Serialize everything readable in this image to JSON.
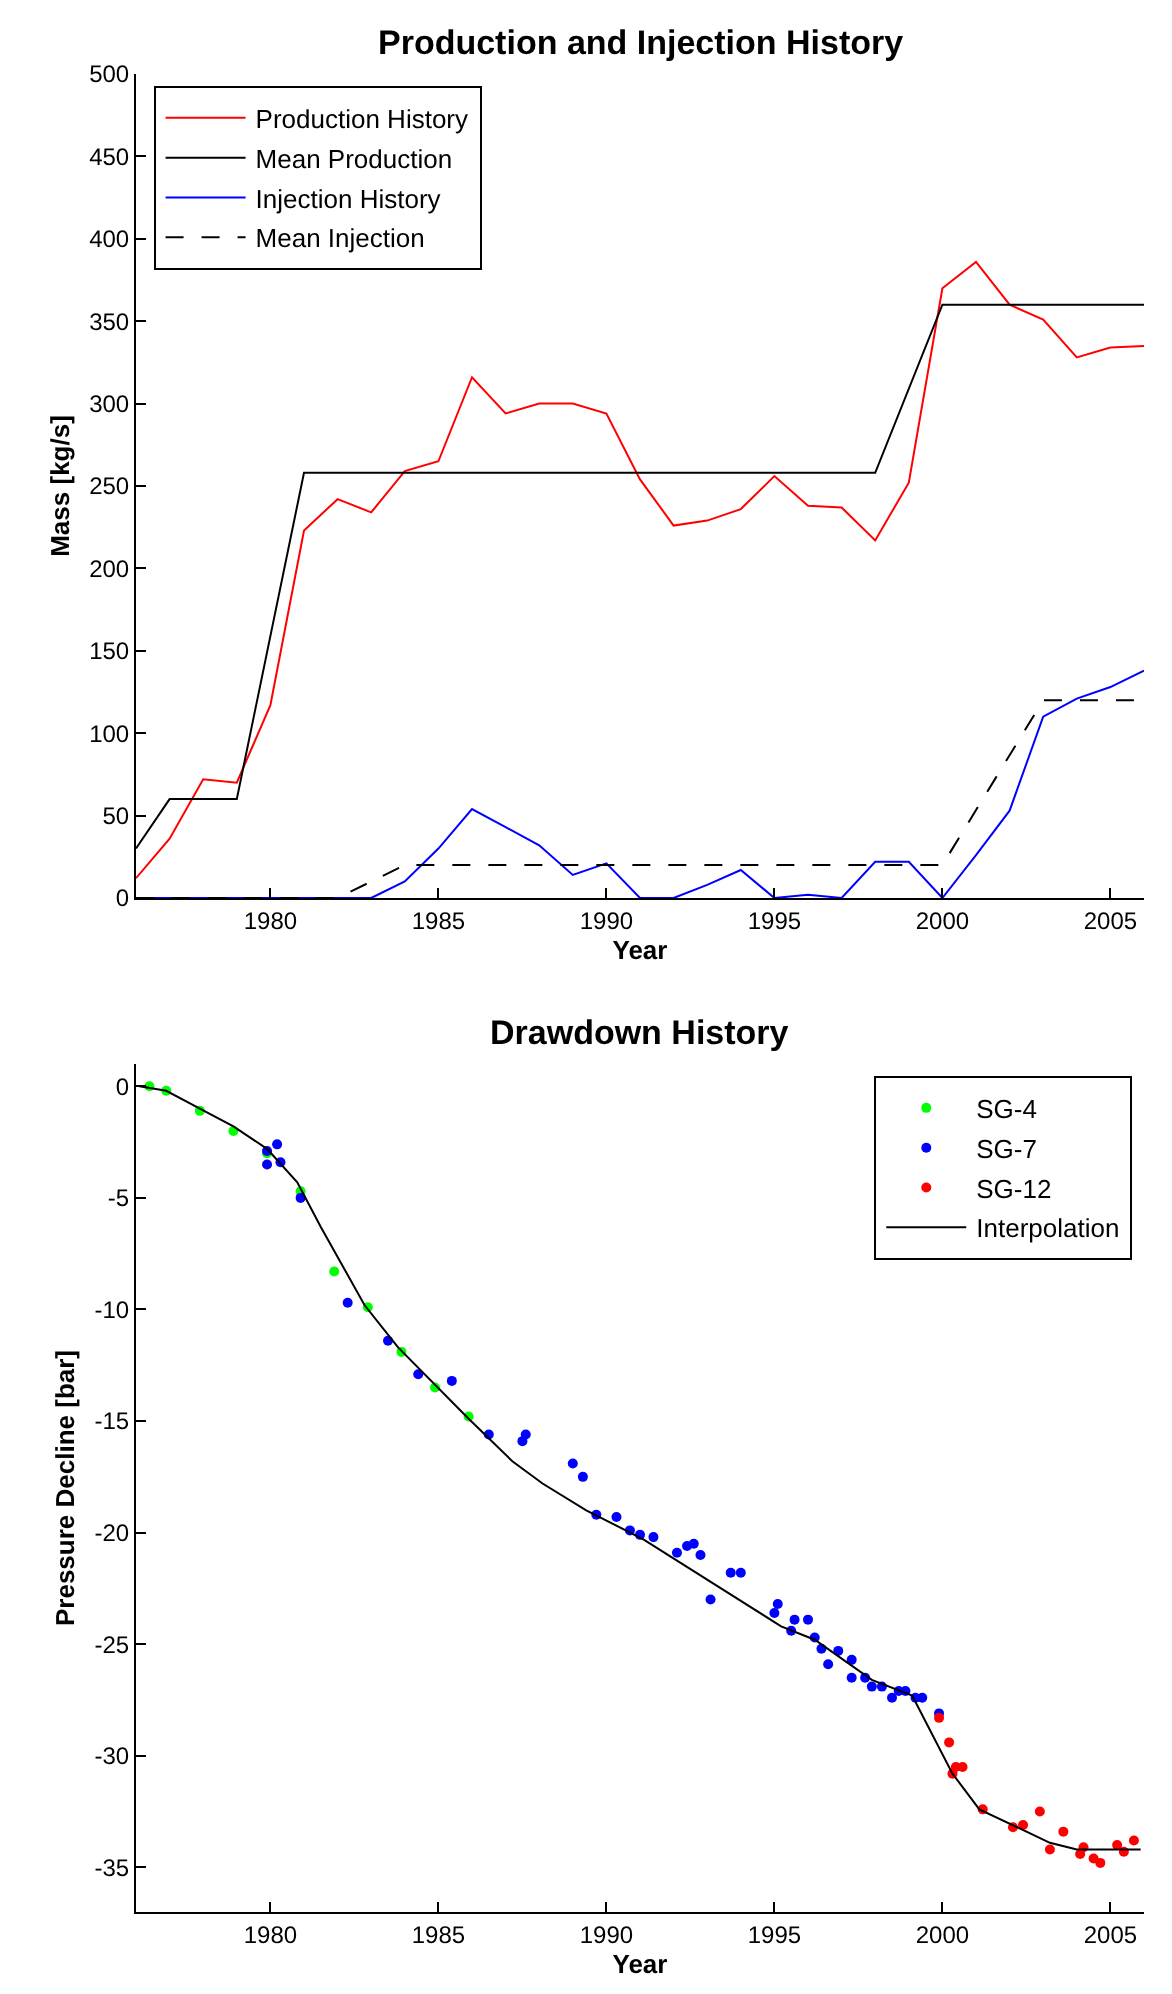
{
  "chart_data": [
    {
      "type": "line",
      "title": "Production and Injection History",
      "xlabel": "Year",
      "ylabel": "Mass [kg/s]",
      "xlim": [
        1976,
        2006
      ],
      "xticks": [
        1980,
        1985,
        1990,
        1995,
        2000,
        2005
      ],
      "ylim": [
        0,
        500
      ],
      "yticks": [
        0,
        50,
        100,
        150,
        200,
        250,
        300,
        350,
        400,
        450,
        500
      ],
      "grid": false,
      "legend": "top left",
      "marker": "none",
      "series": [
        {
          "name": "Production History",
          "color": "#ff0000",
          "line_style": "solid",
          "x": [
            1976,
            1977,
            1978,
            1979,
            1980,
            1981,
            1982,
            1983,
            1984,
            1985,
            1986,
            1987,
            1988,
            1989,
            1990,
            1991,
            1992,
            1993,
            1994,
            1995,
            1996,
            1997,
            1998,
            1999,
            2000,
            2001,
            2002,
            2003,
            2004,
            2005,
            2006
          ],
          "values": [
            12,
            36,
            72,
            70,
            117,
            223,
            242,
            234,
            259,
            265,
            316,
            294,
            300,
            300,
            294,
            254,
            226,
            229,
            236,
            256,
            238,
            237,
            217,
            252,
            370,
            386,
            360,
            351,
            328,
            334,
            335
          ]
        },
        {
          "name": "Mean Production",
          "color": "#000000",
          "line_style": "solid",
          "x": [
            1976,
            1977,
            1979,
            1981,
            1998,
            2000,
            2006
          ],
          "values": [
            30,
            60,
            60,
            258,
            258,
            360,
            360
          ]
        },
        {
          "name": "Injection History",
          "color": "#0000ff",
          "line_style": "solid",
          "x": [
            1976,
            1977,
            1978,
            1979,
            1980,
            1981,
            1982,
            1983,
            1984,
            1985,
            1986,
            1987,
            1988,
            1989,
            1990,
            1991,
            1992,
            1993,
            1994,
            1995,
            1996,
            1997,
            1998,
            1999,
            2000,
            2001,
            2002,
            2003,
            2004,
            2005,
            2006
          ],
          "values": [
            0,
            0,
            0,
            0,
            0,
            0,
            0,
            0,
            10,
            30,
            54,
            43,
            32,
            14,
            21,
            0,
            0,
            8,
            17,
            0,
            2,
            0,
            22,
            22,
            0,
            26,
            53,
            110,
            121,
            128,
            138
          ]
        },
        {
          "name": "Mean Injection",
          "color": "#000000",
          "line_style": "dashed",
          "x": [
            1976,
            1982,
            1984,
            2000,
            2003,
            2006
          ],
          "values": [
            0,
            0,
            20,
            20,
            120,
            120
          ]
        }
      ]
    },
    {
      "type": "scatter",
      "title": "Drawdown History",
      "xlabel": "Year",
      "ylabel": "Pressure Decline [bar]",
      "xlim": [
        1976,
        2006
      ],
      "xticks": [
        1980,
        1985,
        1990,
        1995,
        2000,
        2005
      ],
      "ylim": [
        -37,
        1
      ],
      "yticks": [
        -35,
        -30,
        -25,
        -20,
        -15,
        -10,
        -5,
        0
      ],
      "grid": false,
      "legend": "top right",
      "marker": "circle",
      "series": [
        {
          "name": "SG-4",
          "color": "#00ff00",
          "x": [
            1976.4,
            1976.9,
            1977.9,
            1978.9,
            1979.9,
            1980.9,
            1981.9,
            1982.9,
            1983.9,
            1984.9,
            1985.9
          ],
          "values": [
            0,
            -0.2,
            -1.1,
            -2.0,
            -3.0,
            -4.7,
            -8.3,
            -9.9,
            -11.9,
            -13.5,
            -14.8
          ]
        },
        {
          "name": "SG-7",
          "color": "#0000ff",
          "x": [
            1979.9,
            1979.9,
            1980.2,
            1980.3,
            1980.9,
            1982.3,
            1983.5,
            1984.4,
            1985.4,
            1986.5,
            1987.5,
            1987.6,
            1989.0,
            1989.3,
            1989.7,
            1990.3,
            1990.7,
            1991.0,
            1991.4,
            1992.1,
            1992.4,
            1992.6,
            1992.8,
            1993.1,
            1993.7,
            1994.0,
            1995.0,
            1995.1,
            1995.5,
            1995.6,
            1996.0,
            1996.2,
            1996.4,
            1996.6,
            1996.9,
            1997.3,
            1997.3,
            1997.7,
            1997.9,
            1998.2,
            1998.5,
            1998.7,
            1998.9,
            1999.2,
            1999.4,
            1999.9
          ],
          "values": [
            -2.9,
            -3.5,
            -2.6,
            -3.4,
            -5.0,
            -9.7,
            -11.4,
            -12.9,
            -13.2,
            -15.6,
            -15.9,
            -15.6,
            -16.9,
            -17.5,
            -19.2,
            -19.3,
            -19.9,
            -20.1,
            -20.2,
            -20.9,
            -20.6,
            -20.5,
            -21.0,
            -23.0,
            -21.8,
            -21.8,
            -23.6,
            -23.2,
            -24.4,
            -23.9,
            -23.9,
            -24.7,
            -25.2,
            -25.9,
            -25.3,
            -25.7,
            -26.5,
            -26.5,
            -26.9,
            -26.9,
            -27.4,
            -27.1,
            -27.1,
            -27.4,
            -27.4,
            -28.1
          ]
        },
        {
          "name": "SG-12",
          "color": "#ff0000",
          "x": [
            1999.9,
            2000.2,
            2000.3,
            2000.4,
            2000.6,
            2001.2,
            2002.1,
            2002.4,
            2002.9,
            2003.2,
            2003.6,
            2004.1,
            2004.2,
            2004.5,
            2004.7,
            2005.2,
            2005.4,
            2005.7
          ],
          "values": [
            -28.3,
            -29.4,
            -30.8,
            -30.5,
            -30.5,
            -32.4,
            -33.2,
            -33.1,
            -32.5,
            -34.2,
            -33.4,
            -34.4,
            -34.1,
            -34.6,
            -34.8,
            -34.0,
            -34.3,
            -33.8
          ]
        },
        {
          "name": "Interpolation",
          "type": "line",
          "marker": "none",
          "color": "#000000",
          "line_style": "solid",
          "x": [
            1976.1,
            1976.9,
            1977.9,
            1978.9,
            1979.9,
            1980.8,
            1981.5,
            1982.8,
            1983.8,
            1985.9,
            1987.2,
            1988.1,
            1989.4,
            1991.1,
            1995.2,
            1996.2,
            1997.9,
            1999.1,
            2000.3,
            2001.1,
            2003.2,
            2004.0,
            2005.9
          ],
          "values": [
            0,
            -0.2,
            -1.0,
            -1.8,
            -2.8,
            -4.3,
            -6.3,
            -9.8,
            -11.7,
            -14.9,
            -16.8,
            -17.8,
            -19.0,
            -20.3,
            -24.2,
            -24.8,
            -26.6,
            -27.3,
            -30.8,
            -32.4,
            -33.9,
            -34.2,
            -34.2
          ]
        }
      ]
    }
  ]
}
